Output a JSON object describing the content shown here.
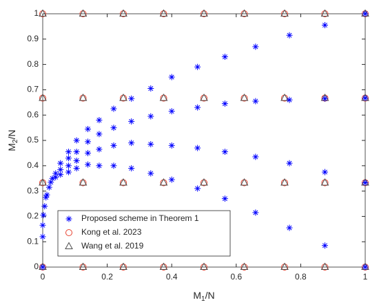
{
  "chart_data": {
    "type": "scatter",
    "xlabel": [
      "M",
      "1",
      "/N"
    ],
    "ylabel": [
      "M",
      "2",
      "/N"
    ],
    "xlim": [
      0,
      1
    ],
    "ylim": [
      0,
      1
    ],
    "xticks": [
      0,
      0.2,
      0.4,
      0.6,
      0.8,
      1
    ],
    "yticks": [
      0,
      0.1,
      0.2,
      0.3,
      0.4,
      0.5,
      0.6,
      0.7,
      0.8,
      0.9,
      1
    ],
    "grid": false,
    "legend": "lower left",
    "series": [
      {
        "name": "Proposed scheme in Theorem 1",
        "color": "#0000ff",
        "marker": "star",
        "x": [
          0,
          0,
          0.002,
          0.006,
          0.01,
          0.013,
          0.02,
          0.025,
          0.03,
          0.04,
          0.04,
          0.055,
          0.055,
          0.055,
          0.08,
          0.08,
          0.08,
          0.08,
          0.105,
          0.105,
          0.105,
          0.105,
          0.14,
          0.14,
          0.14,
          0.14,
          0.175,
          0.175,
          0.175,
          0.175,
          0.22,
          0.22,
          0.22,
          0.22,
          0.275,
          0.275,
          0.275,
          0.275,
          0.335,
          0.335,
          0.335,
          0.335,
          0.4,
          0.4,
          0.4,
          0.4,
          0.48,
          0.48,
          0.48,
          0.48,
          0.565,
          0.565,
          0.565,
          0.565,
          0.66,
          0.66,
          0.66,
          0.66,
          0.765,
          0.765,
          0.765,
          0.765,
          0.875,
          0.875,
          0.875,
          0.875,
          1,
          1,
          1,
          1,
          0
        ],
        "y": [
          0.12,
          0.165,
          0.205,
          0.24,
          0.275,
          0.285,
          0.315,
          0.335,
          0.35,
          0.37,
          0.355,
          0.41,
          0.385,
          0.365,
          0.455,
          0.43,
          0.4,
          0.375,
          0.5,
          0.455,
          0.42,
          0.39,
          0.545,
          0.495,
          0.45,
          0.405,
          0.58,
          0.525,
          0.465,
          0.4,
          0.625,
          0.55,
          0.48,
          0.4,
          0.665,
          0.575,
          0.49,
          0.39,
          0.705,
          0.595,
          0.485,
          0.37,
          0.75,
          0.615,
          0.48,
          0.345,
          0.79,
          0.63,
          0.47,
          0.31,
          0.83,
          0.645,
          0.455,
          0.27,
          0.87,
          0.655,
          0.435,
          0.215,
          0.915,
          0.66,
          0.41,
          0.155,
          0.955,
          0.665,
          0.375,
          0.085,
          1,
          0.667,
          0.333,
          0,
          0
        ]
      },
      {
        "name": "Kong et al. 2023",
        "color": "#e8412f",
        "marker": "circle",
        "x": [
          0,
          0.125,
          0.25,
          0.375,
          0.5,
          0.625,
          0.75,
          0.875,
          1,
          0,
          0.125,
          0.25,
          0.375,
          0.5,
          0.625,
          0.75,
          0.875,
          1,
          0,
          0.125,
          0.25,
          0.375,
          0.5,
          0.625,
          0.75,
          0.875,
          1,
          0,
          0.125,
          0.25,
          0.375,
          0.5,
          0.625,
          0.75,
          0.875,
          1
        ],
        "y": [
          0,
          0,
          0,
          0,
          0,
          0,
          0,
          0,
          0,
          0.333,
          0.333,
          0.333,
          0.333,
          0.333,
          0.333,
          0.333,
          0.333,
          0.333,
          0.667,
          0.667,
          0.667,
          0.667,
          0.667,
          0.667,
          0.667,
          0.667,
          0.667,
          1,
          1,
          1,
          1,
          1,
          1,
          1,
          1,
          1
        ]
      },
      {
        "name": "Wang et al. 2019",
        "color": "#4d4d4d",
        "marker": "triangle",
        "x": [
          0,
          0.125,
          0.25,
          0.375,
          0.5,
          0.625,
          0.75,
          0.875,
          1,
          0,
          0.125,
          0.25,
          0.375,
          0.5,
          0.625,
          0.75,
          0.875,
          1,
          0,
          0.125,
          0.25,
          0.375,
          0.5,
          0.625,
          0.75,
          0.875,
          1,
          0,
          0.125,
          0.25,
          0.375,
          0.5,
          0.625,
          0.75,
          0.875,
          1
        ],
        "y": [
          0,
          0,
          0,
          0,
          0,
          0,
          0,
          0,
          0,
          0.333,
          0.333,
          0.333,
          0.333,
          0.333,
          0.333,
          0.333,
          0.333,
          0.333,
          0.667,
          0.667,
          0.667,
          0.667,
          0.667,
          0.667,
          0.667,
          0.667,
          0.667,
          1,
          1,
          1,
          1,
          1,
          1,
          1,
          1,
          1
        ]
      }
    ]
  }
}
